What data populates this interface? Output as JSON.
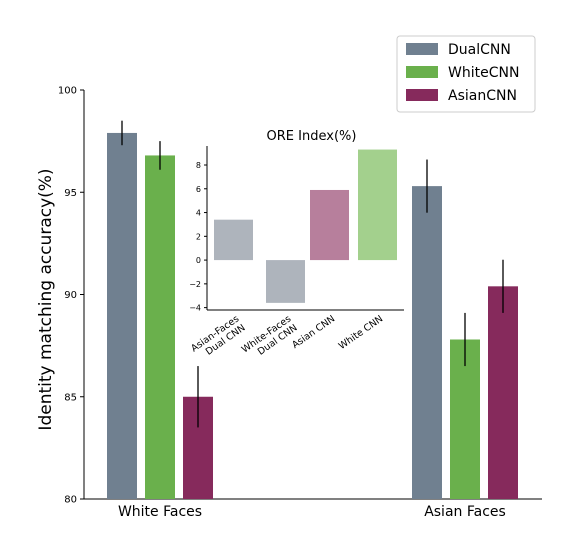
{
  "chart_data": [
    {
      "type": "bar",
      "ylabel": "Identity matching accuracy(%)",
      "ylim": [
        80,
        100
      ],
      "yticks": [
        80,
        85,
        90,
        95,
        100
      ],
      "groups": [
        "White Faces",
        "Asian Faces"
      ],
      "legend": {
        "placement": "top-right"
      },
      "series": [
        {
          "name": "DualCNN",
          "color": "#708090",
          "values": [
            97.9,
            95.3
          ],
          "errors": [
            0.6,
            1.3
          ]
        },
        {
          "name": "WhiteCNN",
          "color": "#6AB04C",
          "values": [
            96.8,
            87.8
          ],
          "errors": [
            0.7,
            1.3
          ]
        },
        {
          "name": "AsianCNN",
          "color": "#862A5C",
          "values": [
            85.0,
            90.4
          ],
          "errors": [
            1.5,
            1.3
          ]
        }
      ]
    },
    {
      "type": "bar",
      "title": "ORE Index(%)",
      "ylim": [
        -4.2,
        9.6
      ],
      "yticks": [
        -4,
        -2,
        0,
        2,
        4,
        6,
        8
      ],
      "categories": [
        "Asian-Faces\nDual CNN",
        "White-Faces\nDual CNN",
        "Asian CNN",
        "White CNN"
      ],
      "values": [
        3.4,
        -3.6,
        5.9,
        9.3
      ],
      "colors": [
        "#AEB4BC",
        "#AEB4BC",
        "#B77F9C",
        "#A3D08D"
      ]
    }
  ]
}
